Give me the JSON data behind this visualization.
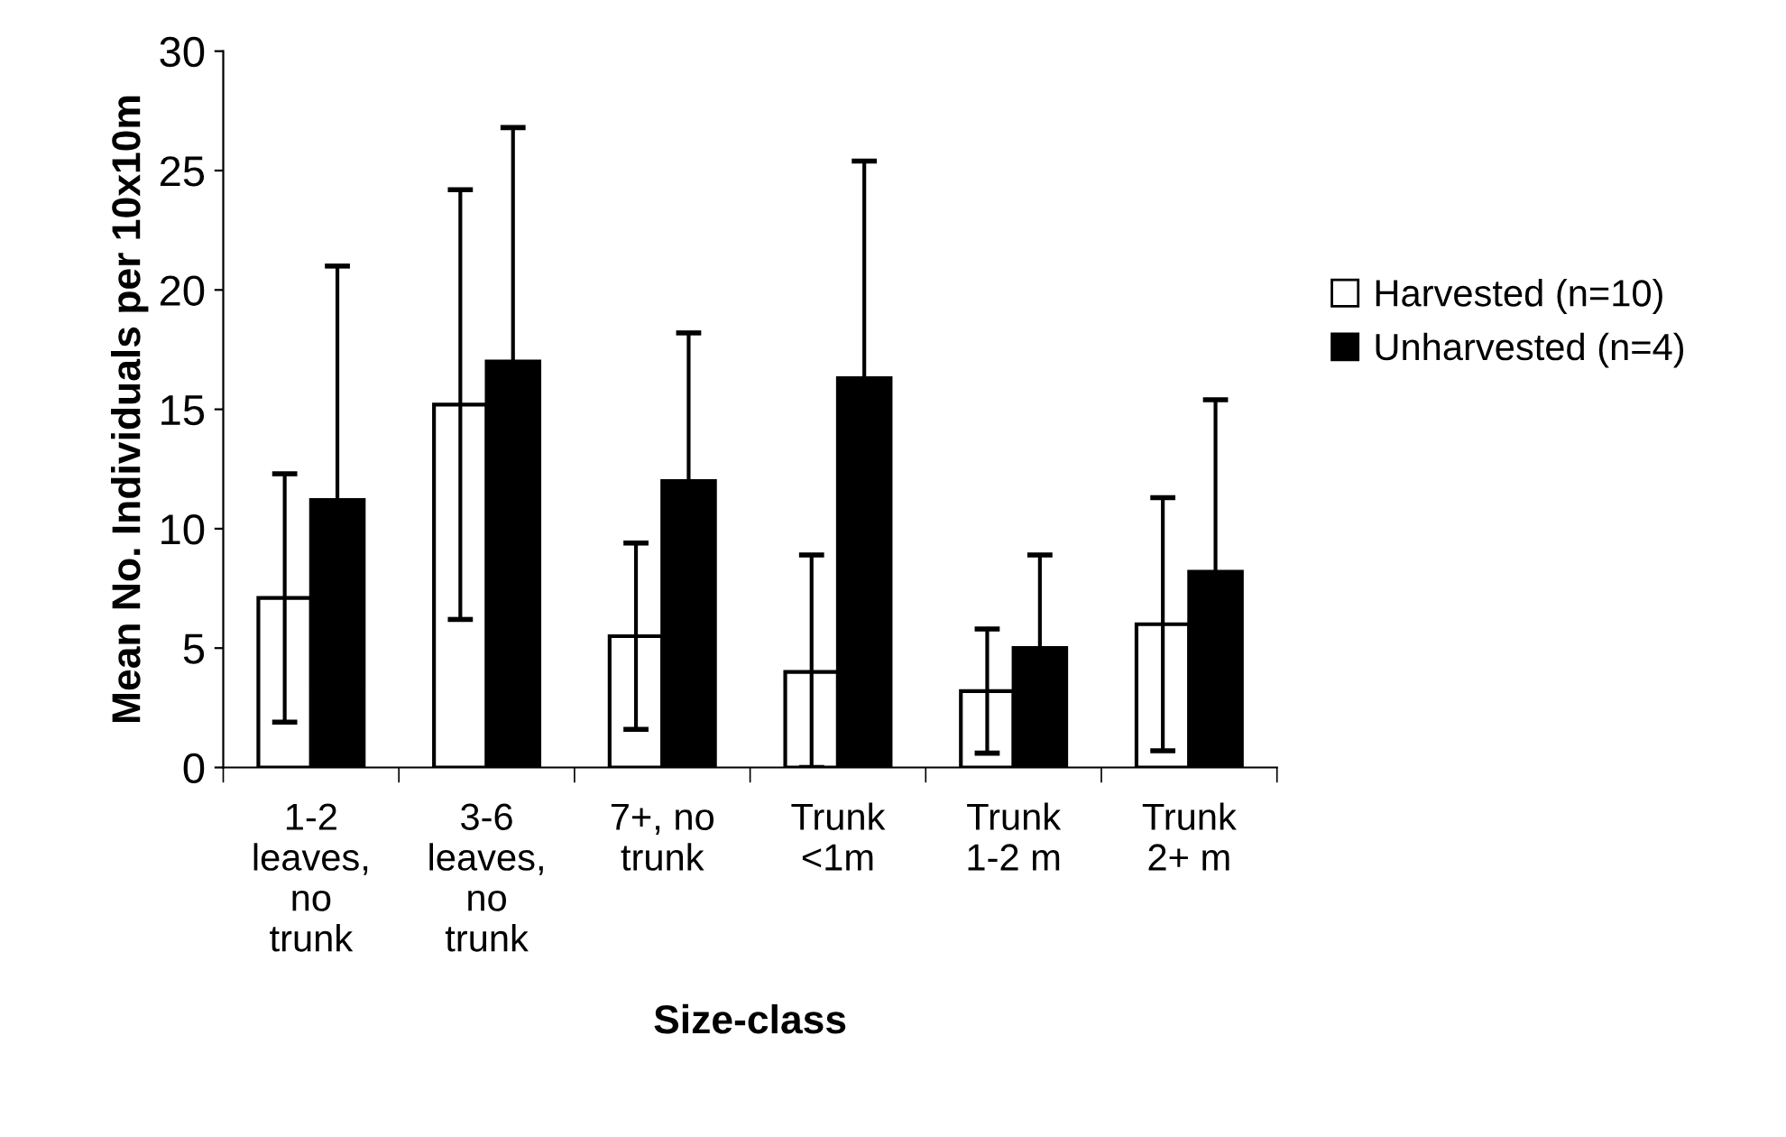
{
  "chart_data": {
    "type": "bar",
    "xlabel": "Size-class",
    "ylabel": "Mean No. Individuals per 10x10m",
    "categories": [
      "1-2\nleaves,\nno\ntrunk",
      "3-6\nleaves,\nno\ntrunk",
      "7+, no\ntrunk",
      "Trunk\n<1m",
      "Trunk\n1-2 m",
      "Trunk\n2+ m"
    ],
    "series": [
      {
        "name": "Harvested (n=10)",
        "color": "#ffffff",
        "values": [
          7.1,
          15.2,
          5.5,
          4.0,
          3.2,
          6.0
        ],
        "errors": [
          5.2,
          9.0,
          3.9,
          [
            0,
            8.9
          ],
          2.6,
          5.3
        ]
      },
      {
        "name": "Unharvested (n=4)",
        "color": "#000000",
        "values": [
          11.2,
          17.0,
          12.0,
          16.3,
          5.0,
          8.2
        ],
        "errors": [
          9.8,
          9.8,
          6.2,
          9.1,
          3.9,
          7.2
        ]
      }
    ],
    "ylim": [
      0,
      30
    ],
    "yticks": [
      0,
      5,
      10,
      15,
      20,
      25,
      30
    ],
    "grid": false,
    "legend": "right"
  }
}
